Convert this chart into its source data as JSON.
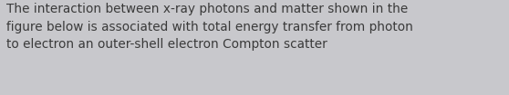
{
  "background_color": "#c8c8cc",
  "text": "The interaction between x-ray photons and matter shown in the\nfigure below is associated with total energy transfer from photon\nto electron an outer-shell electron Compton scatter",
  "text_color": "#3a3a3a",
  "font_size": 9.8,
  "font_family": "sans-serif",
  "fig_width": 5.58,
  "fig_height": 1.05,
  "dpi": 100
}
